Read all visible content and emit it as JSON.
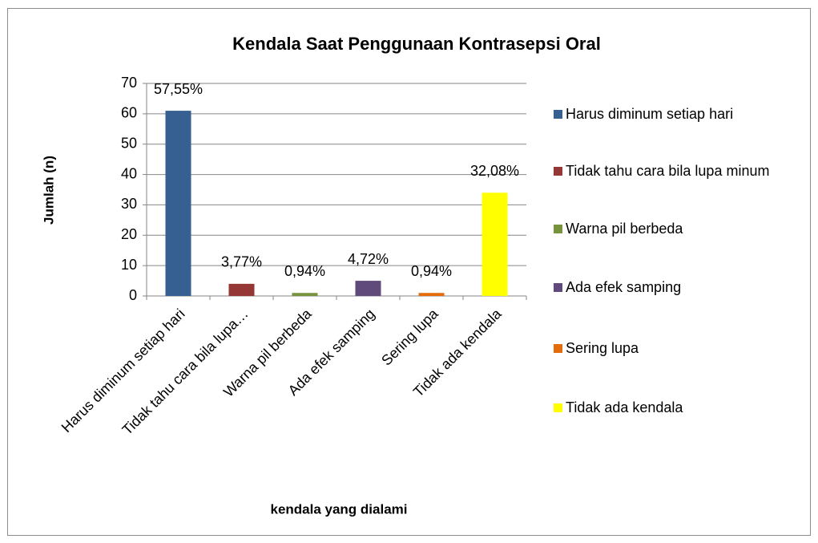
{
  "chart_data": {
    "type": "bar",
    "title": "Kendala Saat Penggunaan Kontrasepsi Oral",
    "y_label": "Jumlah (n)",
    "x_label": "kendala yang dialami",
    "categories": [
      "Harus diminum setiap hari",
      "Tidak tahu cara bila lupa…",
      "Warna pil berbeda",
      "Ada efek samping",
      "Sering lupa",
      "Tidak ada kendala"
    ],
    "legend": [
      "Harus diminum setiap hari",
      "Tidak tahu cara bila lupa minum",
      "Warna pil berbeda",
      "Ada efek samping",
      "Sering lupa",
      "Tidak ada kendala"
    ],
    "values": [
      61,
      4,
      1,
      5,
      1,
      34
    ],
    "value_labels": [
      "57,55%",
      "3,77%",
      "0,94%",
      "4,72%",
      "0,94%",
      "32,08%"
    ],
    "colors": [
      "#366092",
      "#953735",
      "#77933c",
      "#604a7b",
      "#e46c0a",
      "#ffff00"
    ],
    "ylim": [
      0,
      70
    ],
    "yticks": [
      0,
      10,
      20,
      30,
      40,
      50,
      60,
      70
    ],
    "grid": true,
    "legend_position": "right"
  }
}
